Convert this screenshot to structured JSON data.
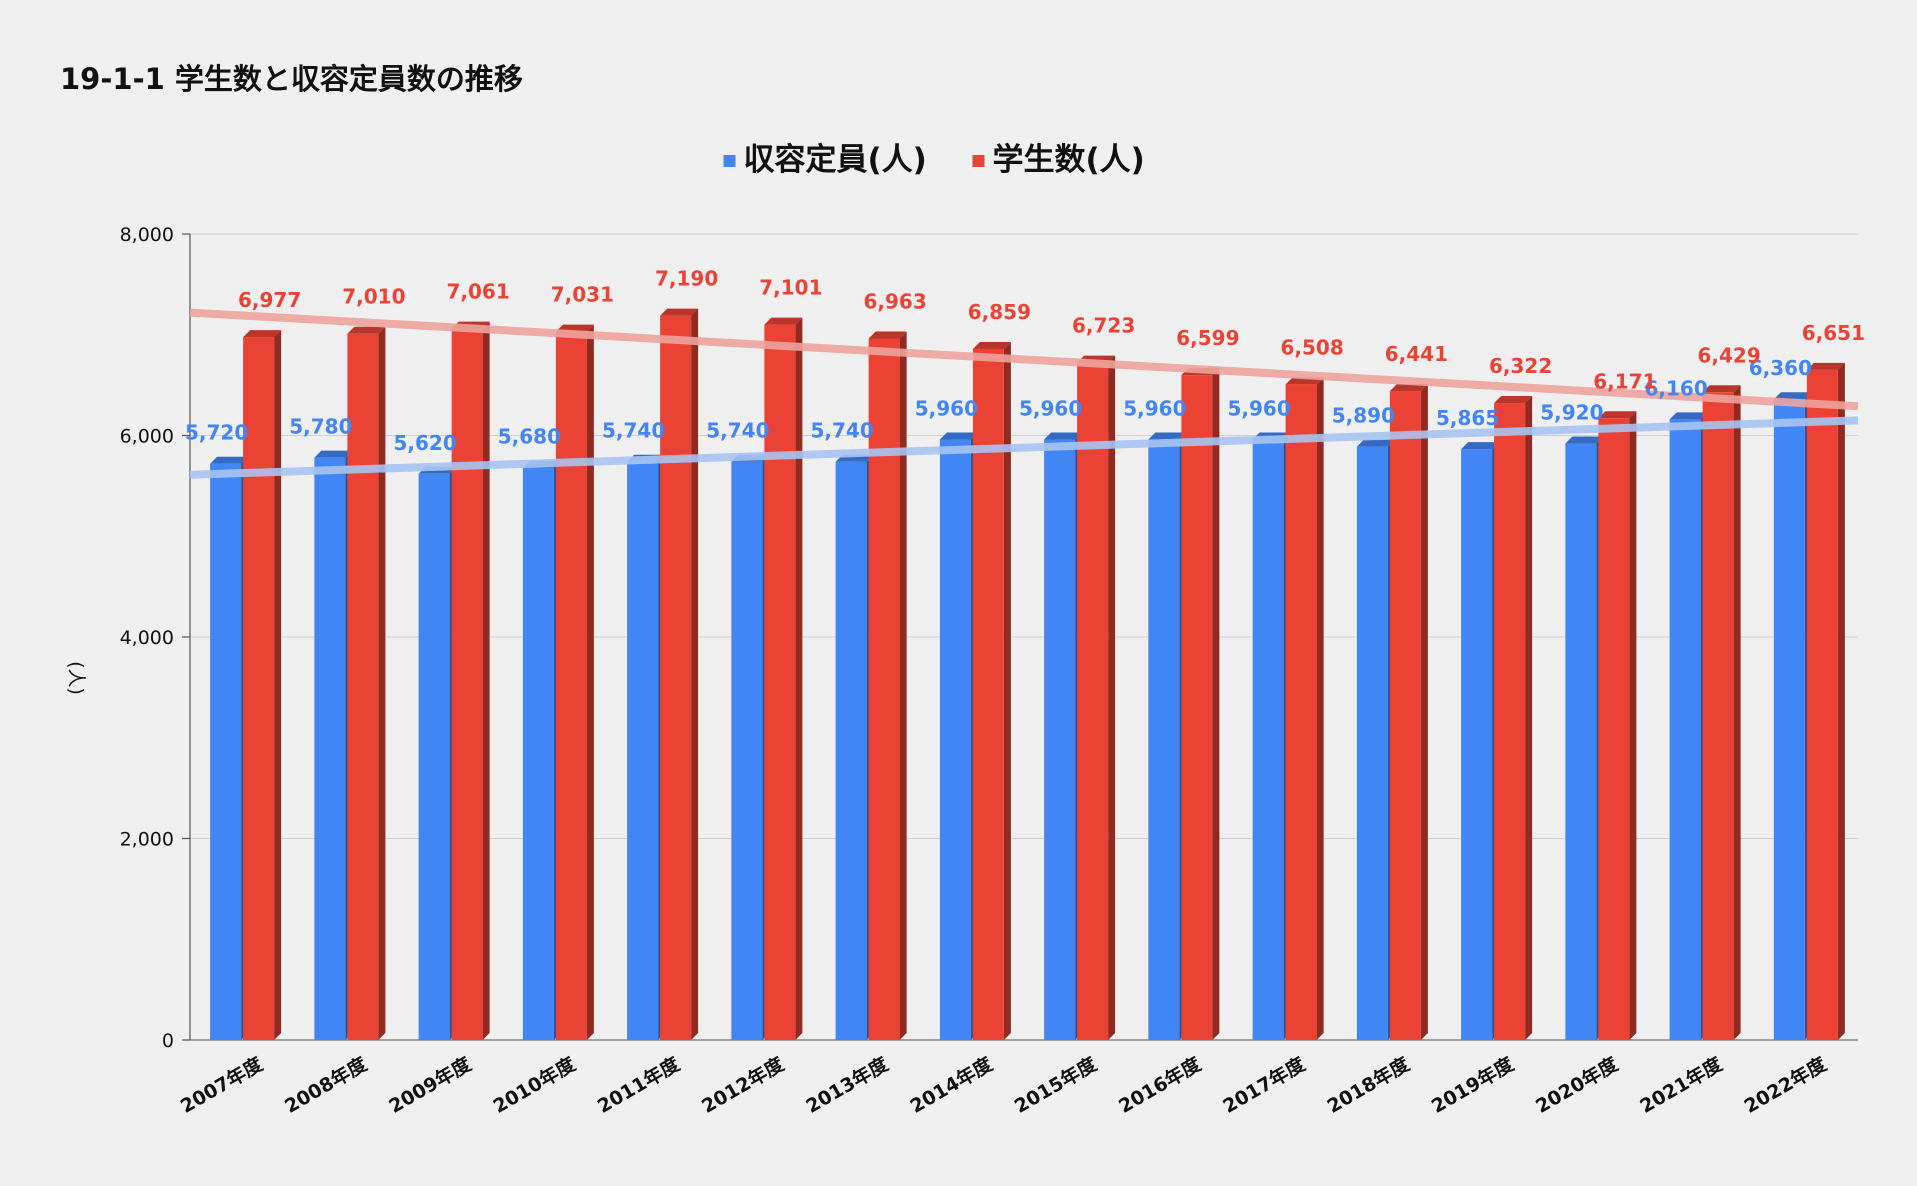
{
  "chart_data": {
    "type": "bar",
    "title": "19-1-1 学生数と収容定員数の推移",
    "xlabel": "",
    "ylabel": "(人)",
    "ylim": [
      0,
      8000
    ],
    "yticks": [
      0,
      2000,
      4000,
      6000,
      8000
    ],
    "ytick_labels": [
      "0",
      "2,000",
      "4,000",
      "6,000",
      "8,000"
    ],
    "grid": true,
    "legend_position": "top-center",
    "categories": [
      "2007年度",
      "2008年度",
      "2009年度",
      "2010年度",
      "2011年度",
      "2012年度",
      "2013年度",
      "2014年度",
      "2015年度",
      "2016年度",
      "2017年度",
      "2018年度",
      "2019年度",
      "2020年度",
      "2021年度",
      "2022年度"
    ],
    "series": [
      {
        "name": "収容定員(人)",
        "color": "#4285f4",
        "trend_color": "#a9c4f2",
        "values": [
          5720,
          5780,
          5620,
          5680,
          5740,
          5740,
          5740,
          5960,
          5960,
          5960,
          5960,
          5890,
          5865,
          5920,
          6160,
          6360
        ],
        "labels": [
          "5,720",
          "5,780",
          "5,620",
          "5,680",
          "5,740",
          "5,740",
          "5,740",
          "5,960",
          "5,960",
          "5,960",
          "5,960",
          "5,890",
          "5,865",
          "5,920",
          "6,160",
          "6,360"
        ],
        "trendline": [
          5610,
          6150
        ]
      },
      {
        "name": "学生数(人)",
        "color": "#ea4335",
        "trend_color": "#eea39c",
        "values": [
          6977,
          7010,
          7061,
          7031,
          7190,
          7101,
          6963,
          6859,
          6723,
          6599,
          6508,
          6441,
          6322,
          6171,
          6429,
          6651
        ],
        "labels": [
          "6,977",
          "7,010",
          "7,061",
          "7,031",
          "7,190",
          "7,101",
          "6,963",
          "6,859",
          "6,723",
          "6,599",
          "6,508",
          "6,441",
          "6,322",
          "6,171",
          "6,429",
          "6,651"
        ],
        "trendline": [
          7220,
          6290
        ]
      }
    ]
  }
}
